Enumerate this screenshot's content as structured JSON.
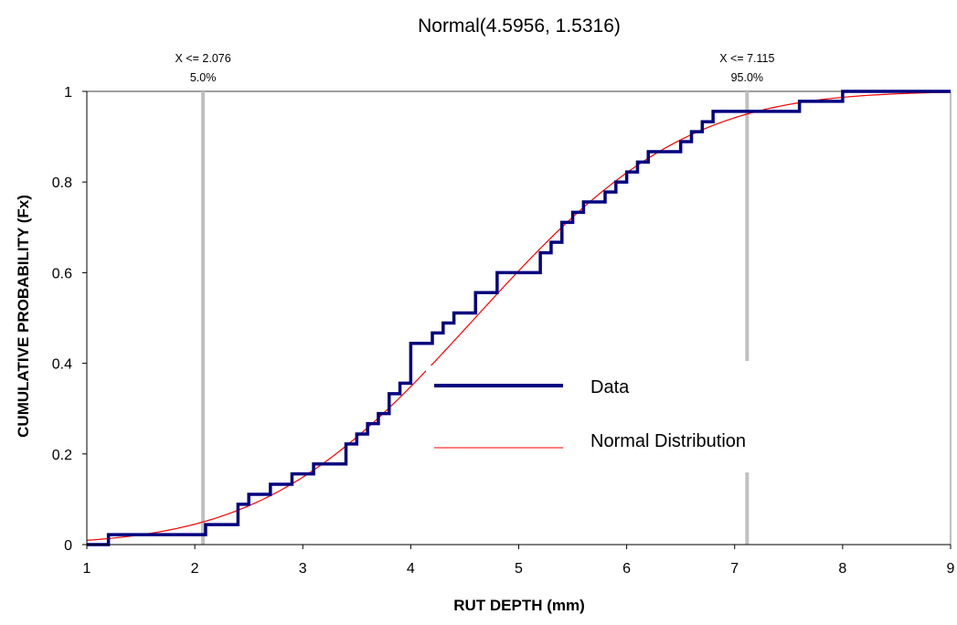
{
  "chart_data": {
    "type": "line",
    "title": "Normal(4.5956, 1.5316)",
    "xlabel": "RUT DEPTH (mm)",
    "ylabel": "CUMULATIVE PROBABILITY (Fx)",
    "xlim": [
      1,
      9
    ],
    "ylim": [
      0,
      1
    ],
    "x_ticks": [
      "1",
      "2",
      "3",
      "4",
      "5",
      "6",
      "7",
      "8",
      "9"
    ],
    "y_ticks": [
      "0",
      "0.2",
      "0.4",
      "0.6",
      "0.8",
      "1"
    ],
    "grid": false,
    "legend_position": "center-right",
    "markers": [
      {
        "label": "X <= 2.076",
        "percent": "5.0%",
        "x": 2.076
      },
      {
        "label": "X <= 7.115",
        "percent": "95.0%",
        "x": 7.115
      }
    ],
    "series": [
      {
        "name": "Data",
        "style": "step",
        "color": "#000080",
        "x": [
          1.0,
          1.2,
          2.1,
          2.4,
          2.5,
          2.7,
          2.9,
          3.1,
          3.4,
          3.5,
          3.6,
          3.7,
          3.8,
          3.9,
          4.0,
          4.2,
          4.3,
          4.4,
          4.6,
          4.8,
          5.2,
          5.3,
          5.4,
          5.5,
          5.6,
          5.8,
          5.9,
          6.0,
          6.1,
          6.2,
          6.5,
          6.6,
          6.7,
          6.8,
          6.9,
          7.0,
          7.6,
          8.0,
          9.0
        ],
        "y": [
          0.0,
          0.022,
          0.044,
          0.089,
          0.111,
          0.133,
          0.156,
          0.178,
          0.222,
          0.244,
          0.267,
          0.289,
          0.333,
          0.356,
          0.444,
          0.467,
          0.489,
          0.511,
          0.556,
          0.6,
          0.644,
          0.667,
          0.711,
          0.733,
          0.756,
          0.778,
          0.8,
          0.822,
          0.844,
          0.867,
          0.889,
          0.911,
          0.933,
          0.956,
          0.956,
          0.956,
          0.978,
          1.0,
          1.0
        ]
      },
      {
        "name": "Normal Distribution",
        "style": "curve",
        "color": "#ff0000",
        "mean": 4.5956,
        "sd": 1.5316
      }
    ]
  }
}
